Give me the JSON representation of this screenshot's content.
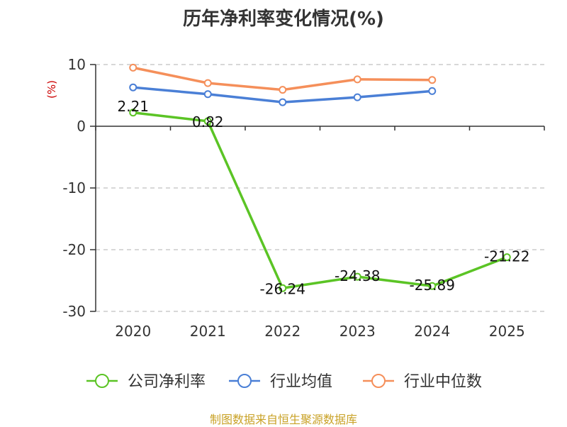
{
  "chart_data": {
    "type": "line",
    "title": "历年净利率变化情况(%)",
    "ylabel": "(%)",
    "categories": [
      "2020",
      "2021",
      "2022",
      "2023",
      "2024",
      "2025"
    ],
    "ylim": [
      -30,
      10
    ],
    "yticks": [
      10,
      0,
      -10,
      -20,
      -30
    ],
    "grid": true,
    "legend_position": "bottom",
    "series": [
      {
        "name": "公司净利率",
        "color": "#5bc425",
        "values": [
          2.21,
          0.82,
          -26.24,
          -24.38,
          -25.89,
          -21.22
        ],
        "labels": [
          "2.21",
          "0.82",
          "-26.24",
          "-24.38",
          "-25.89",
          "-21.22"
        ]
      },
      {
        "name": "行业均值",
        "color": "#4a7fd6",
        "values": [
          6.3,
          5.2,
          3.9,
          4.7,
          5.7,
          null
        ]
      },
      {
        "name": "行业中位数",
        "color": "#f58f5a",
        "values": [
          9.5,
          7.0,
          5.9,
          7.6,
          7.5,
          null
        ]
      }
    ]
  },
  "footer": {
    "source": "制图数据来自恒生聚源数据库"
  }
}
